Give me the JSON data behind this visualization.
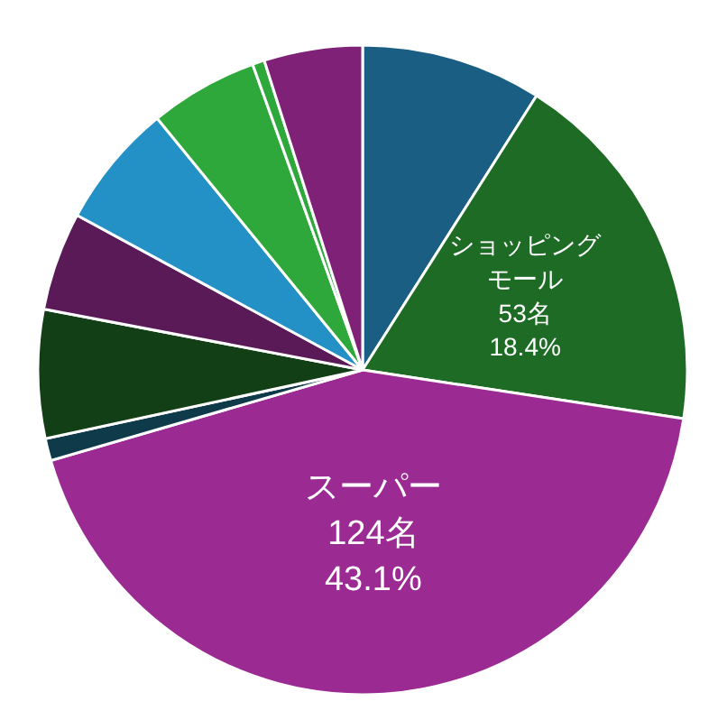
{
  "chart_data": {
    "type": "pie",
    "categories": [
      null,
      "ショッピングモール",
      "スーパー",
      null,
      null,
      null,
      null,
      null,
      null,
      null
    ],
    "values": [
      9.0,
      18.4,
      43.1,
      1.1,
      6.4,
      4.9,
      6.2,
      5.4,
      0.6,
      4.9
    ],
    "value_labels": [
      null,
      "53名\n18.4%",
      "124名\n43.1%",
      null,
      null,
      null,
      null,
      null,
      null,
      null
    ],
    "colors": [
      "#1a5e84",
      "#1e6b26",
      "#9b2a92",
      "#0e3a4a",
      "#133f16",
      "#5a1a57",
      "#2390c6",
      "#2ea83a",
      "#2ea83a",
      "#7f2277"
    ]
  }
}
